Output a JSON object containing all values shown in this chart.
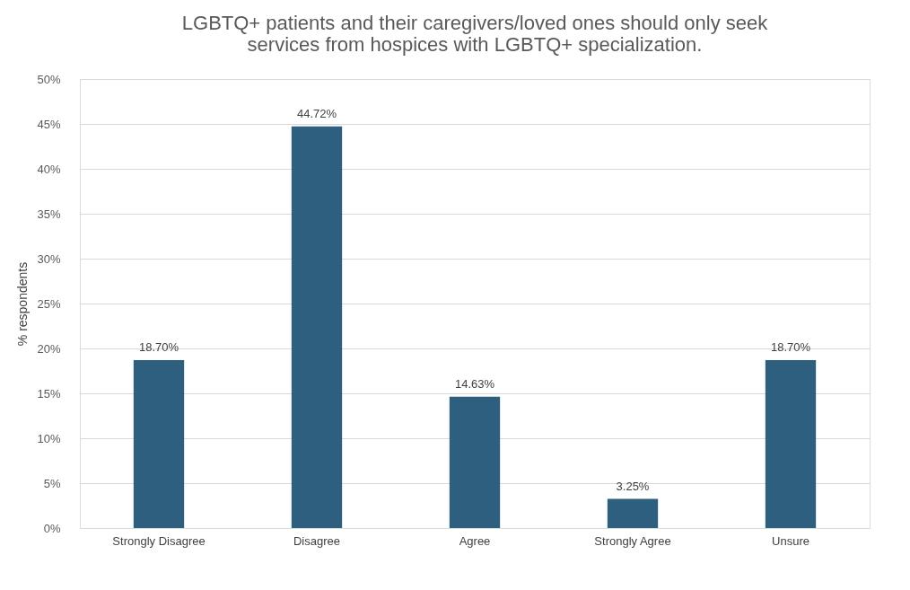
{
  "chart_data": {
    "type": "bar",
    "title": [
      "LGBTQ+ patients and their caregivers/loved ones should only seek",
      "services from hospices with LGBTQ+ specialization."
    ],
    "ylabel": "% respondents",
    "categories": [
      "Strongly Disagree",
      "Disagree",
      "Agree",
      "Strongly Agree",
      "Unsure"
    ],
    "values": [
      18.7,
      44.72,
      14.63,
      3.25,
      18.7
    ],
    "value_labels": [
      "18.70%",
      "44.72%",
      "14.63%",
      "3.25%",
      "18.70%"
    ],
    "color": "#2e5f7f",
    "ylim": [
      0,
      50
    ],
    "yticks": [
      {
        "value": 0,
        "label": "0%"
      },
      {
        "value": 5,
        "label": "5%"
      },
      {
        "value": 10,
        "label": "10%"
      },
      {
        "value": 15,
        "label": "15%"
      },
      {
        "value": 20,
        "label": "20%"
      },
      {
        "value": 25,
        "label": "25%"
      },
      {
        "value": 30,
        "label": "30%"
      },
      {
        "value": 35,
        "label": "35%"
      },
      {
        "value": 40,
        "label": "40%"
      },
      {
        "value": 45,
        "label": "45%"
      },
      {
        "value": 50,
        "label": "50%"
      }
    ],
    "grid": "y"
  }
}
